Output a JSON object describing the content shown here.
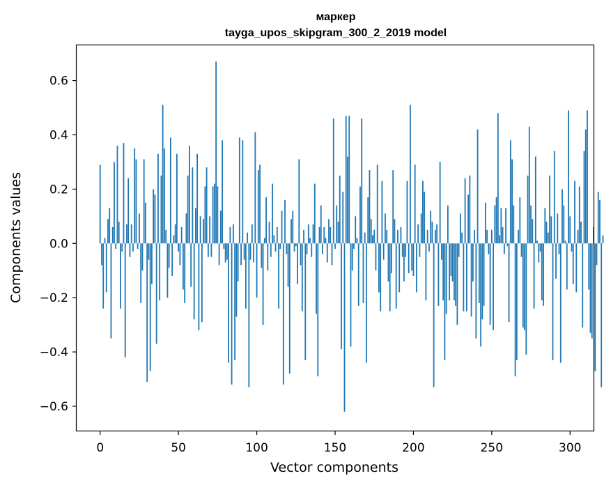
{
  "chart_data": {
    "type": "bar",
    "title_line1": "маркер",
    "title_line2": "tayga_upos_skipgram_300_2_2019 model",
    "xlabel": "Vector components",
    "ylabel": "Components values",
    "xlim": [
      -15,
      315
    ],
    "ylim": [
      -0.69,
      0.73
    ],
    "xticks": [
      0,
      50,
      100,
      150,
      200,
      250,
      300
    ],
    "xtick_labels": [
      "0",
      "50",
      "100",
      "150",
      "200",
      "250",
      "300"
    ],
    "yticks": [
      -0.6,
      -0.4,
      -0.2,
      0.0,
      0.2,
      0.4,
      0.6
    ],
    "ytick_labels": [
      "−0.6",
      "−0.4",
      "−0.2",
      "0.0",
      "0.2",
      "0.4",
      "0.6"
    ],
    "bar_color": "#1f77b4",
    "values": [
      0.29,
      -0.08,
      -0.24,
      0.02,
      -0.18,
      0.09,
      0.13,
      -0.35,
      0.06,
      0.3,
      -0.02,
      0.36,
      0.08,
      -0.24,
      -0.03,
      0.37,
      -0.42,
      0.07,
      0.24,
      -0.05,
      0.07,
      -0.03,
      0.35,
      0.31,
      -0.02,
      0.11,
      -0.22,
      -0.1,
      0.31,
      0.15,
      -0.51,
      -0.06,
      -0.47,
      -0.15,
      0.2,
      0.18,
      -0.37,
      0.33,
      -0.21,
      0.25,
      0.51,
      0.35,
      0.05,
      -0.2,
      -0.09,
      0.39,
      -0.12,
      0.03,
      0.07,
      0.33,
      -0.03,
      -0.08,
      0.06,
      -0.17,
      -0.22,
      0.11,
      0.25,
      0.36,
      -0.16,
      0.28,
      -0.28,
      0.13,
      0.33,
      -0.32,
      0.1,
      -0.29,
      0.09,
      0.21,
      0.28,
      -0.05,
      0.1,
      -0.05,
      0.21,
      0.22,
      0.67,
      0.21,
      -0.08,
      0.12,
      0.38,
      -0.02,
      -0.07,
      -0.06,
      -0.44,
      0.06,
      -0.52,
      0.07,
      -0.43,
      -0.27,
      -0.14,
      0.39,
      -0.08,
      0.38,
      -0.06,
      -0.24,
      0.04,
      -0.53,
      -0.06,
      0.07,
      -0.07,
      0.41,
      -0.2,
      0.27,
      0.29,
      -0.09,
      -0.3,
      0.02,
      0.17,
      -0.1,
      0.08,
      -0.05,
      0.22,
      0.03,
      -0.03,
      0.06,
      -0.24,
      -0.02,
      0.12,
      -0.52,
      0.16,
      -0.04,
      -0.16,
      -0.48,
      0.09,
      0.12,
      -0.03,
      -0.01,
      -0.15,
      0.31,
      -0.08,
      -0.25,
      0.05,
      -0.43,
      -0.04,
      0.07,
      0.02,
      -0.05,
      0.07,
      0.22,
      -0.26,
      -0.49,
      0.06,
      0.14,
      -0.04,
      0.06,
      0.02,
      -0.07,
      0.09,
      0.06,
      -0.08,
      0.46,
      -0.02,
      0.14,
      0.08,
      0.25,
      -0.39,
      0.19,
      -0.62,
      0.47,
      0.32,
      0.47,
      -0.38,
      -0.1,
      -0.02,
      0.1,
      0.02,
      -0.23,
      0.21,
      0.46,
      -0.22,
      0.04,
      -0.44,
      0.17,
      0.27,
      0.09,
      0.03,
      0.05,
      -0.1,
      0.29,
      -0.18,
      -0.25,
      0.23,
      -0.06,
      0.11,
      0.05,
      -0.14,
      -0.25,
      -0.11,
      0.27,
      0.09,
      -0.24,
      0.05,
      -0.18,
      0.06,
      -0.05,
      -0.14,
      -0.05,
      0.23,
      -0.11,
      0.51,
      -0.1,
      -0.12,
      0.29,
      -0.18,
      0.07,
      -0.05,
      0.11,
      0.23,
      0.19,
      -0.21,
      0.05,
      -0.03,
      0.12,
      0.08,
      -0.53,
      0.05,
      0.07,
      -0.23,
      0.3,
      -0.06,
      -0.21,
      -0.43,
      -0.26,
      0.14,
      -0.21,
      -0.12,
      -0.14,
      -0.21,
      -0.23,
      -0.3,
      -0.05,
      0.11,
      0.04,
      -0.25,
      0.24,
      -0.25,
      0.18,
      0.25,
      -0.27,
      -0.14,
      0.05,
      -0.35,
      0.42,
      -0.22,
      -0.38,
      -0.28,
      -0.23,
      0.15,
      0.05,
      -0.04,
      -0.3,
      0.05,
      -0.32,
      0.14,
      0.17,
      0.48,
      0.03,
      0.13,
      0.06,
      -0.04,
      0.13,
      -0.01,
      -0.29,
      0.38,
      0.31,
      0.14,
      -0.49,
      -0.43,
      0.05,
      0.17,
      -0.05,
      -0.31,
      -0.32,
      -0.41,
      0.25,
      0.43,
      0.14,
      0.09,
      -0.24,
      0.32,
      0.01,
      -0.07,
      -0.03,
      -0.21,
      -0.23,
      0.13,
      0.08,
      0.04,
      0.25,
      0.1,
      -0.43,
      0.34,
      -0.13,
      0.11,
      -0.04,
      -0.44,
      0.2,
      0.14,
      0.01,
      -0.17,
      0.49,
      0.1,
      -0.03,
      -0.15,
      0.23,
      -0.18,
      0.05,
      0.21,
      0.08,
      -0.31,
      0.34,
      0.42,
      0.49,
      -0.17,
      -0.33,
      -0.35,
      0.06,
      -0.47,
      -0.08,
      0.19,
      0.16,
      -0.53,
      0.03
    ]
  }
}
